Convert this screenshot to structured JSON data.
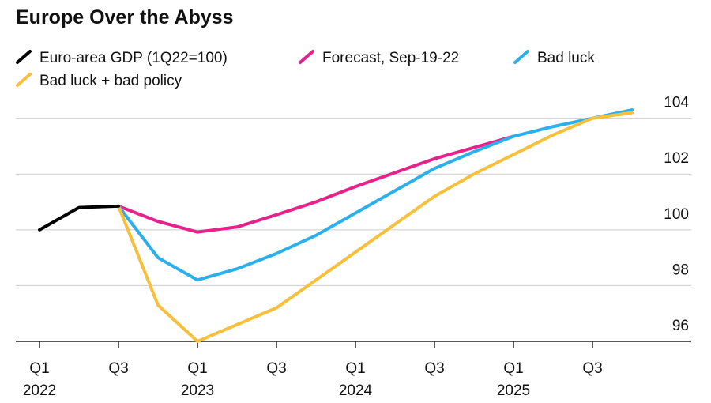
{
  "chart_data": {
    "type": "line",
    "title": "Europe Over the Abyss",
    "categories": [
      "Q1",
      null,
      "Q3",
      null,
      "Q1",
      null,
      "Q3",
      null,
      "Q1",
      null,
      "Q3",
      null,
      "Q1",
      null,
      "Q3",
      null
    ],
    "year_labels": [
      "2022",
      "2023",
      "2024",
      "2025"
    ],
    "series": [
      {
        "name": "Euro-area GDP (1Q22=100)",
        "color": "#000000",
        "values": [
          100.0,
          100.8,
          100.85,
          null,
          null,
          null,
          null,
          null,
          null,
          null,
          null,
          null,
          null,
          null,
          null,
          null
        ]
      },
      {
        "name": "Forecast, Sep-19-22",
        "color": "#e8218b",
        "values": [
          null,
          null,
          100.85,
          100.3,
          99.92,
          100.1,
          100.54,
          101.0,
          101.55,
          102.05,
          102.55,
          102.95,
          103.35,
          null,
          null,
          null
        ]
      },
      {
        "name": "Bad luck",
        "color": "#2bb0ec",
        "values": [
          null,
          null,
          100.85,
          99.0,
          98.2,
          98.6,
          99.15,
          99.8,
          100.6,
          101.4,
          102.2,
          102.8,
          103.35,
          103.7,
          104.0,
          104.3
        ]
      },
      {
        "name": "Bad luck + bad policy",
        "color": "#f7c03c",
        "values": [
          null,
          null,
          100.85,
          97.3,
          96.0,
          96.6,
          97.2,
          98.2,
          99.2,
          100.2,
          101.2,
          102.0,
          102.7,
          103.4,
          104.0,
          104.2
        ]
      }
    ],
    "ylim": [
      96,
      104.5
    ],
    "yticks": [
      96,
      98,
      100,
      102,
      104
    ],
    "grid": true
  }
}
